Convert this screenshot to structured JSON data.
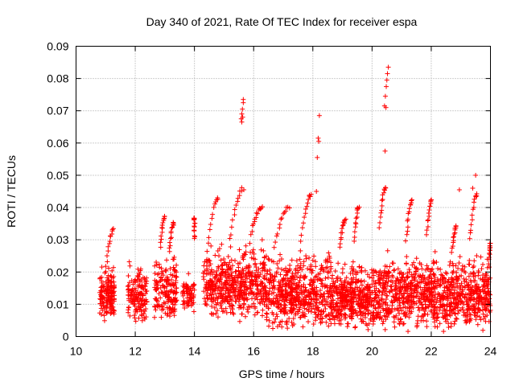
{
  "chart_data": {
    "type": "scatter",
    "title": "Day 340 of 2021, Rate Of TEC Index for receiver espa",
    "xlabel": "GPS time / hours",
    "ylabel": "ROTI / TECUs",
    "xlim": [
      10,
      24
    ],
    "ylim": [
      0,
      0.09
    ],
    "grid": true,
    "legend": "none",
    "marker": "+",
    "series_color": "#ff0000",
    "x_ticks": [
      10,
      12,
      14,
      16,
      18,
      20,
      22,
      24
    ],
    "x_tick_labels": [
      "10",
      "12",
      "14",
      "16",
      "18",
      "20",
      "22",
      "24"
    ],
    "y_ticks": [
      0,
      0.01,
      0.02,
      0.03,
      0.04,
      0.05,
      0.06,
      0.07,
      0.08,
      0.09
    ],
    "y_tick_labels": [
      "0",
      "0.01",
      "0.02",
      "0.03",
      "0.04",
      "0.05",
      "0.06",
      "0.07",
      "0.08",
      "0.09"
    ],
    "density_bands": [
      {
        "x0": 10.8,
        "x1": 11.3,
        "ymin": 0.004,
        "ymax": 0.024,
        "n": 160
      },
      {
        "x0": 11.75,
        "x1": 12.4,
        "ymin": 0.003,
        "ymax": 0.025,
        "n": 150
      },
      {
        "x0": 12.65,
        "x1": 13.4,
        "ymin": 0.004,
        "ymax": 0.028,
        "n": 170
      },
      {
        "x0": 13.6,
        "x1": 14.0,
        "ymin": 0.006,
        "ymax": 0.022,
        "n": 70
      },
      {
        "x0": 14.3,
        "x1": 16.4,
        "ymin": 0.004,
        "ymax": 0.032,
        "n": 520
      },
      {
        "x0": 16.4,
        "x1": 18.6,
        "ymin": 0.001,
        "ymax": 0.03,
        "n": 560
      },
      {
        "x0": 18.6,
        "x1": 20.2,
        "ymin": 0.001,
        "ymax": 0.026,
        "n": 460
      },
      {
        "x0": 20.2,
        "x1": 22.2,
        "ymin": 0.001,
        "ymax": 0.03,
        "n": 520
      },
      {
        "x0": 22.2,
        "x1": 24.0,
        "ymin": 0.001,
        "ymax": 0.028,
        "n": 470
      }
    ],
    "arcs": [
      {
        "x0": 11.0,
        "x1": 11.25,
        "y0": 0.02,
        "y1": 0.033
      },
      {
        "x0": 12.85,
        "x1": 13.0,
        "y0": 0.028,
        "y1": 0.037
      },
      {
        "x0": 13.15,
        "x1": 13.3,
        "y0": 0.026,
        "y1": 0.035
      },
      {
        "x0": 14.0,
        "x1": 14.0,
        "y0": 0.03,
        "y1": 0.0365
      },
      {
        "x0": 14.4,
        "x1": 14.8,
        "y0": 0.024,
        "y1": 0.043
      },
      {
        "x0": 15.2,
        "x1": 15.65,
        "y0": 0.03,
        "y1": 0.046
      },
      {
        "x0": 15.9,
        "x1": 16.3,
        "y0": 0.032,
        "y1": 0.04
      },
      {
        "x0": 16.7,
        "x1": 17.2,
        "y0": 0.028,
        "y1": 0.04
      },
      {
        "x0": 17.6,
        "x1": 17.95,
        "y0": 0.03,
        "y1": 0.044
      },
      {
        "x0": 18.9,
        "x1": 19.1,
        "y0": 0.028,
        "y1": 0.036
      },
      {
        "x0": 19.4,
        "x1": 19.55,
        "y0": 0.03,
        "y1": 0.04
      },
      {
        "x0": 20.25,
        "x1": 20.45,
        "y0": 0.034,
        "y1": 0.046
      },
      {
        "x0": 21.15,
        "x1": 21.35,
        "y0": 0.03,
        "y1": 0.042
      },
      {
        "x0": 21.85,
        "x1": 22.0,
        "y0": 0.032,
        "y1": 0.042
      },
      {
        "x0": 22.7,
        "x1": 22.85,
        "y0": 0.026,
        "y1": 0.034
      },
      {
        "x0": 23.3,
        "x1": 23.55,
        "y0": 0.03,
        "y1": 0.044
      },
      {
        "x0": 23.95,
        "x1": 24.0,
        "y0": 0.022,
        "y1": 0.029
      }
    ],
    "outliers": [
      {
        "x": 15.65,
        "y": 0.0735
      },
      {
        "x": 15.65,
        "y": 0.0725
      },
      {
        "x": 15.62,
        "y": 0.0705
      },
      {
        "x": 15.6,
        "y": 0.069
      },
      {
        "x": 15.58,
        "y": 0.0675
      },
      {
        "x": 15.6,
        "y": 0.0665
      },
      {
        "x": 15.63,
        "y": 0.068
      },
      {
        "x": 18.22,
        "y": 0.0685
      },
      {
        "x": 18.18,
        "y": 0.0615
      },
      {
        "x": 18.2,
        "y": 0.0605
      },
      {
        "x": 18.15,
        "y": 0.0555
      },
      {
        "x": 18.12,
        "y": 0.045
      },
      {
        "x": 20.55,
        "y": 0.0835
      },
      {
        "x": 20.52,
        "y": 0.0815
      },
      {
        "x": 20.5,
        "y": 0.0795
      },
      {
        "x": 20.48,
        "y": 0.0775
      },
      {
        "x": 20.45,
        "y": 0.0745
      },
      {
        "x": 20.42,
        "y": 0.0715
      },
      {
        "x": 20.47,
        "y": 0.071
      },
      {
        "x": 20.44,
        "y": 0.0575
      },
      {
        "x": 23.5,
        "y": 0.05
      },
      {
        "x": 23.4,
        "y": 0.046
      },
      {
        "x": 22.95,
        "y": 0.0455
      }
    ]
  }
}
